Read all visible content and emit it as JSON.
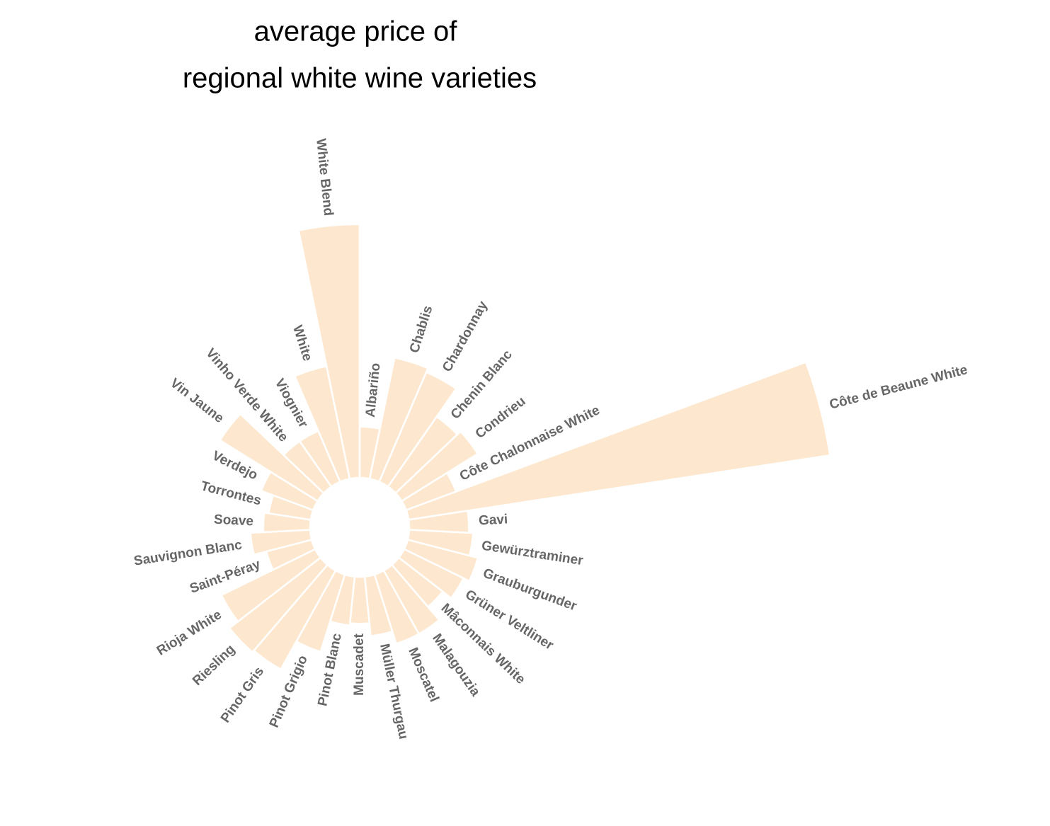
{
  "chart_data": {
    "type": "radial-bar",
    "title": [
      "average price of",
      "regional white wine varieties"
    ],
    "categories": [
      "Albariño",
      "Chablis",
      "Chardonnay",
      "Chenin Blanc",
      "Condrieu",
      "Côte Chalonnaise White",
      "Côte de Beaune White",
      "Gavi",
      "Gewürztraminer",
      "Grauburgunder",
      "Grüner Veltliner",
      "Mâconnais White",
      "Malagouzia",
      "Moscatel",
      "Müller Thurgau",
      "Muscadet",
      "Pinot Blanc",
      "Pinot Grigio",
      "Pinot Gris",
      "Riesling",
      "Rioja White",
      "Saint-Péray",
      "Sauvignon Blanc",
      "Soave",
      "Torrontes",
      "Verdejo",
      "Vin Jaune",
      "Vinho Verde White",
      "Viognier",
      "White",
      "White Blend"
    ],
    "values": [
      12,
      29,
      28,
      20,
      21,
      12.5,
      100,
      14,
      15,
      17,
      15.5,
      13,
      17,
      17,
      14,
      11,
      11.5,
      19,
      26.5,
      27,
      24.5,
      11,
      14,
      11,
      10,
      13,
      27,
      13,
      13,
      27,
      59.5
    ],
    "color": "#fde8cf",
    "ylim": [
      0,
      100
    ]
  }
}
